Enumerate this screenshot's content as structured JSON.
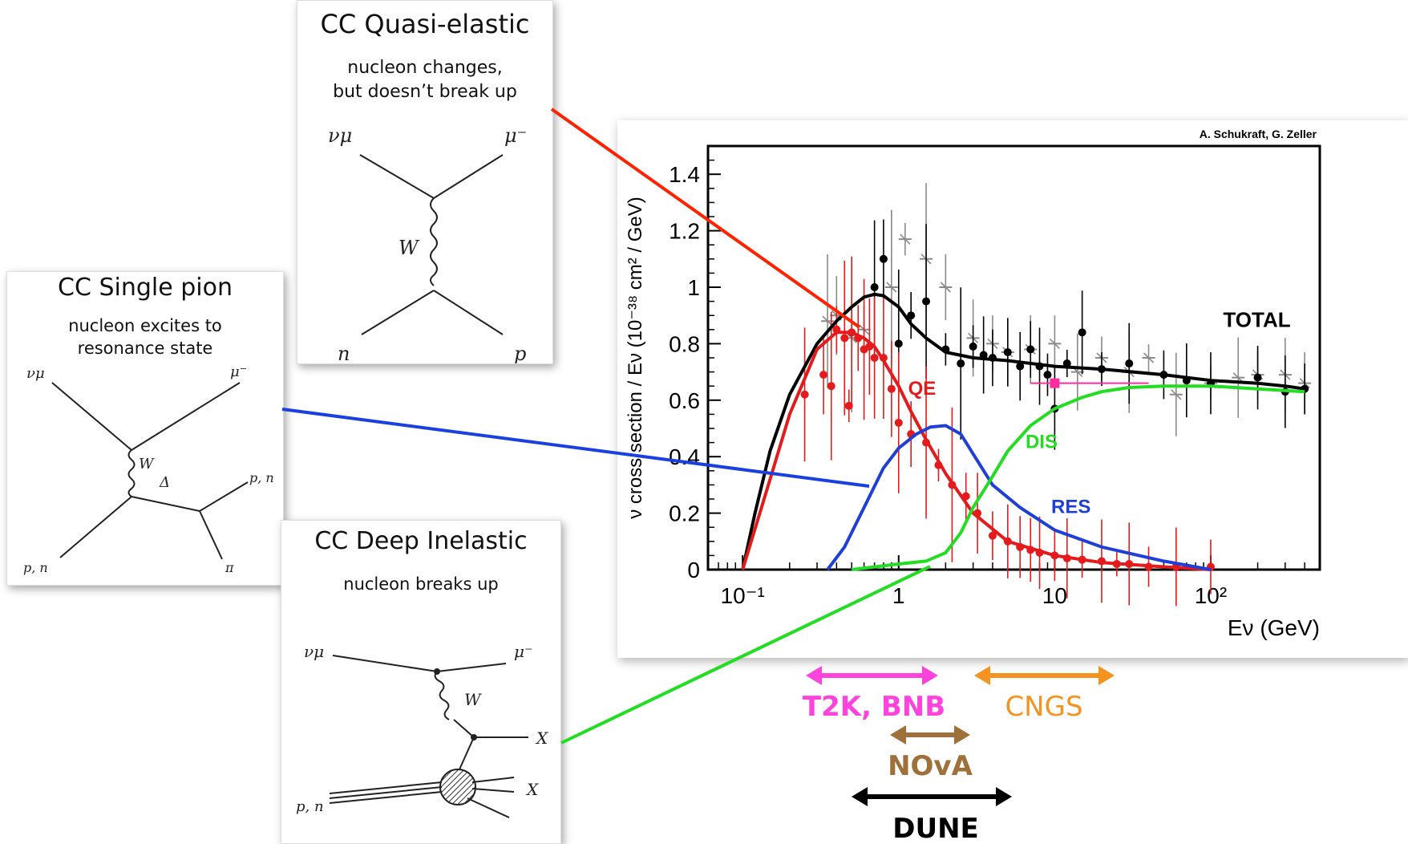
{
  "cards": {
    "quasi_elastic": {
      "title": "CC Quasi-elastic",
      "subtitle_1": "nucleon changes,",
      "subtitle_2": "but doesn’t break up",
      "labels": {
        "in_top": "νμ",
        "out_top": "μ⁻",
        "boson": "W",
        "in_bottom": "n",
        "out_bottom": "p"
      }
    },
    "single_pion": {
      "title": "CC Single pion",
      "subtitle_1": "nucleon excites to",
      "subtitle_2": "resonance state",
      "labels": {
        "in_top": "νμ",
        "out_top": "μ⁻",
        "boson": "W",
        "resonance": "Δ",
        "out_right": "p, n",
        "in_bottom": "p, n",
        "out_bottom": "π"
      }
    },
    "deep_inelastic": {
      "title": "CC Deep Inelastic",
      "subtitle_1": "nucleon breaks up",
      "labels": {
        "in_top": "νμ",
        "out_top": "μ⁻",
        "boson": "W",
        "out_mid": "X",
        "out_bottom": "X",
        "in_bottom": "p, n"
      }
    }
  },
  "chart_data": {
    "type": "line",
    "credit": "A. Schukraft, G. Zeller",
    "ylabel": "ν cross section / Eν (10⁻³⁸ cm² / GeV)",
    "xlabel": "Eν (GeV)",
    "x_scale": "log",
    "xlim": [
      0.06,
      500
    ],
    "ylim": [
      0,
      1.5
    ],
    "yticks": [
      "0",
      "0.2",
      "0.4",
      "0.6",
      "0.8",
      "1",
      "1.2",
      "1.4"
    ],
    "xticks": [
      "10⁻¹",
      "1",
      "10",
      "10²"
    ],
    "series": [
      {
        "name": "TOTAL",
        "color": "#000000",
        "x": [
          0.1,
          0.12,
          0.15,
          0.2,
          0.3,
          0.4,
          0.5,
          0.6,
          0.7,
          0.8,
          1.0,
          1.2,
          1.5,
          2,
          3,
          5,
          10,
          20,
          50,
          100,
          200,
          300,
          400
        ],
        "y": [
          0,
          0.2,
          0.42,
          0.62,
          0.8,
          0.88,
          0.93,
          0.965,
          0.975,
          0.97,
          0.93,
          0.87,
          0.82,
          0.77,
          0.75,
          0.74,
          0.72,
          0.71,
          0.69,
          0.67,
          0.66,
          0.65,
          0.64
        ]
      },
      {
        "name": "QE",
        "color": "#e41a1c",
        "x": [
          0.1,
          0.15,
          0.2,
          0.3,
          0.4,
          0.5,
          0.6,
          0.7,
          0.8,
          1.0,
          1.2,
          1.5,
          2,
          3,
          5,
          10,
          20,
          50,
          100
        ],
        "y": [
          0,
          0.32,
          0.55,
          0.78,
          0.84,
          0.84,
          0.82,
          0.79,
          0.74,
          0.65,
          0.56,
          0.46,
          0.34,
          0.2,
          0.1,
          0.05,
          0.025,
          0.01,
          0
        ]
      },
      {
        "name": "RES",
        "color": "#1f3fd6",
        "x": [
          0.35,
          0.45,
          0.6,
          0.8,
          1.0,
          1.3,
          1.6,
          2.0,
          2.5,
          3.0,
          4.0,
          6.0,
          10,
          20,
          50,
          100
        ],
        "y": [
          0,
          0.08,
          0.22,
          0.36,
          0.43,
          0.48,
          0.505,
          0.51,
          0.48,
          0.41,
          0.3,
          0.22,
          0.14,
          0.08,
          0.03,
          0
        ]
      },
      {
        "name": "DIS",
        "color": "#22dd22",
        "x": [
          0.5,
          1.0,
          1.5,
          2.0,
          2.5,
          3.0,
          4.0,
          5.0,
          7.0,
          10,
          15,
          20,
          30,
          50,
          100,
          200,
          400
        ],
        "y": [
          0,
          0.02,
          0.03,
          0.06,
          0.13,
          0.22,
          0.33,
          0.42,
          0.51,
          0.57,
          0.61,
          0.63,
          0.645,
          0.65,
          0.65,
          0.64,
          0.63
        ]
      }
    ],
    "scatter_points": {
      "red": {
        "x": [
          0.25,
          0.33,
          0.37,
          0.4,
          0.45,
          0.48,
          0.5,
          0.55,
          0.6,
          0.65,
          0.7,
          0.8,
          0.9,
          1.0,
          1.2,
          1.5,
          1.8,
          2.2,
          2.7,
          3.2,
          4,
          5,
          6,
          7,
          8,
          10,
          12,
          15,
          20,
          25,
          30,
          40,
          60,
          100
        ],
        "y": [
          0.62,
          0.69,
          0.65,
          0.85,
          0.82,
          0.58,
          0.84,
          0.82,
          0.78,
          0.79,
          0.75,
          0.75,
          0.64,
          0.52,
          0.48,
          0.45,
          0.37,
          0.3,
          0.26,
          0.2,
          0.12,
          0.1,
          0.08,
          0.07,
          0.06,
          0.05,
          0.04,
          0.035,
          0.03,
          0.02,
          0.02,
          0.01,
          0.01,
          0.01
        ]
      },
      "gray": {
        "x": [
          0.35,
          0.4,
          0.5,
          0.6,
          0.9,
          1.1,
          1.5,
          2.0,
          3,
          4,
          5,
          7,
          10,
          14,
          20,
          30,
          40,
          60,
          100,
          150,
          200,
          300,
          400
        ],
        "y": [
          0.88,
          0.9,
          0.82,
          0.85,
          1.0,
          1.17,
          1.1,
          1.0,
          0.82,
          0.8,
          0.77,
          0.78,
          0.8,
          0.7,
          0.75,
          0.7,
          0.75,
          0.62,
          0.66,
          0.68,
          0.69,
          0.69,
          0.66
        ]
      },
      "black": {
        "x": [
          0.7,
          0.8,
          1.0,
          1.2,
          1.5,
          2.0,
          2.5,
          3,
          3.5,
          4,
          5,
          6,
          7,
          8,
          9,
          10,
          12,
          15,
          20,
          30,
          50,
          70,
          100,
          200,
          300,
          400
        ],
        "y": [
          1.0,
          1.1,
          0.8,
          0.9,
          0.95,
          0.78,
          0.73,
          0.79,
          0.76,
          0.75,
          0.77,
          0.72,
          0.78,
          0.72,
          0.69,
          0.57,
          0.73,
          0.84,
          0.71,
          0.73,
          0.69,
          0.67,
          0.66,
          0.68,
          0.63,
          0.64
        ]
      },
      "magenta": {
        "x": [
          10
        ],
        "y": [
          0.66
        ],
        "xerr": [
          3,
          30
        ]
      }
    },
    "annotations": {
      "total": "TOTAL",
      "qe": "QE",
      "dis": "DIS",
      "res": "RES"
    }
  },
  "beams": [
    {
      "label": "T2K, BNB",
      "color": "#ff44dd"
    },
    {
      "label": "CNGS",
      "color": "#f59220"
    },
    {
      "label": "NOvA",
      "color": "#a0703a"
    },
    {
      "label": "DUNE",
      "color": "#000000"
    }
  ],
  "connectors": {
    "qe_color": "#ff2200",
    "res_color": "#1a40e0",
    "dis_color": "#22dd22"
  }
}
